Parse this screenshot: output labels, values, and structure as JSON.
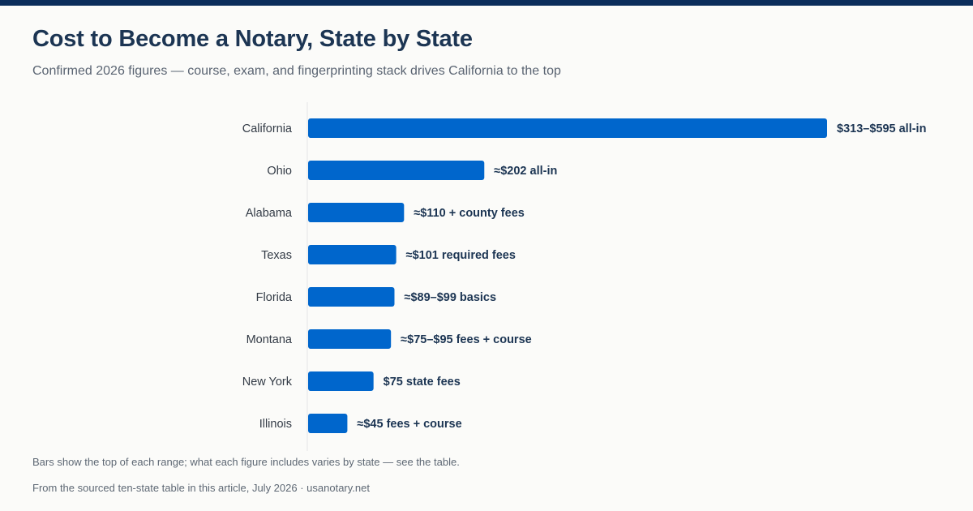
{
  "colors": {
    "top_bar": "#0b2d5b",
    "bar": "#0066cc",
    "title": "#1c3553",
    "axis_line": "#e6e6e6"
  },
  "title": "Cost to Become a Notary, State by State",
  "subtitle": "Confirmed 2026 figures — course, exam, and fingerprinting stack drives California to the top",
  "note": "Bars show the top of each range; what each figure includes varies by state — see the table.",
  "source": "From the sourced ten-state table in this article, July 2026 · usanotary.net",
  "chart_data": {
    "type": "bar",
    "orientation": "horizontal",
    "title": "Cost to Become a Notary, State by State",
    "xlabel": "",
    "ylabel": "",
    "grid": false,
    "xlim": [
      0,
      595
    ],
    "categories": [
      "California",
      "Ohio",
      "Alabama",
      "Texas",
      "Florida",
      "Montana",
      "New York",
      "Illinois"
    ],
    "values": [
      595,
      202,
      110,
      101,
      99,
      95,
      75,
      45
    ],
    "value_labels": [
      "$313–$595 all-in",
      "≈$202 all-in",
      "≈$110 + county fees",
      "≈$101 required fees",
      "≈$89–$99 basics",
      "≈$75–$95 fees + course",
      "$75 state fees",
      "≈$45 fees + course"
    ]
  }
}
